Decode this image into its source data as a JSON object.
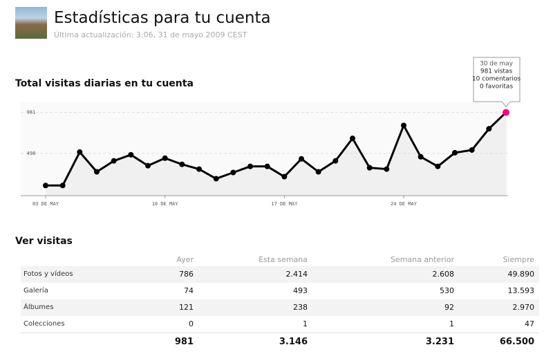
{
  "header": {
    "title": "Estadísticas para tu cuenta",
    "subtitle": "Última actualización: 3:06, 31 de mayo 2009 CEST"
  },
  "chart_data": {
    "type": "line",
    "title": "Total visitas diarias en tu cuenta",
    "categories": [
      "03 DE MAY",
      null,
      null,
      null,
      null,
      null,
      null,
      "10 DE MAY",
      null,
      null,
      null,
      null,
      null,
      null,
      "17 DE MAY",
      null,
      null,
      null,
      null,
      null,
      null,
      "24 DE MAY",
      null,
      null,
      null,
      null,
      null,
      null
    ],
    "values": [
      120,
      120,
      514,
      281,
      410,
      482,
      353,
      442,
      369,
      313,
      200,
      273,
      345,
      345,
      224,
      434,
      281,
      410,
      675,
      329,
      313,
      828,
      458,
      345,
      506,
      538,
      788,
      981
    ],
    "color": "#000000",
    "highlight_color": "#ff0084",
    "ylim": [
      0,
      1100
    ],
    "yticks": [
      498,
      981
    ],
    "grid": true,
    "tooltip": [
      "30 de may",
      "981 vistas",
      "10 comentarios",
      "0 favoritas"
    ]
  },
  "table": {
    "title": "Ver visitas",
    "columns": [
      "Ayer",
      "Esta semana",
      "Semana anterior",
      "Siempre"
    ],
    "rows": [
      {
        "label": "Fotos y vídeos",
        "values": [
          "786",
          "2.414",
          "2.608",
          "49.890"
        ]
      },
      {
        "label": "Galería",
        "values": [
          "74",
          "493",
          "530",
          "13.593"
        ]
      },
      {
        "label": "Álbumes",
        "values": [
          "121",
          "238",
          "92",
          "2.970"
        ]
      },
      {
        "label": "Colecciones",
        "values": [
          "0",
          "1",
          "1",
          "47"
        ]
      }
    ],
    "totals": [
      "981",
      "3.146",
      "3.231",
      "66.500"
    ]
  }
}
